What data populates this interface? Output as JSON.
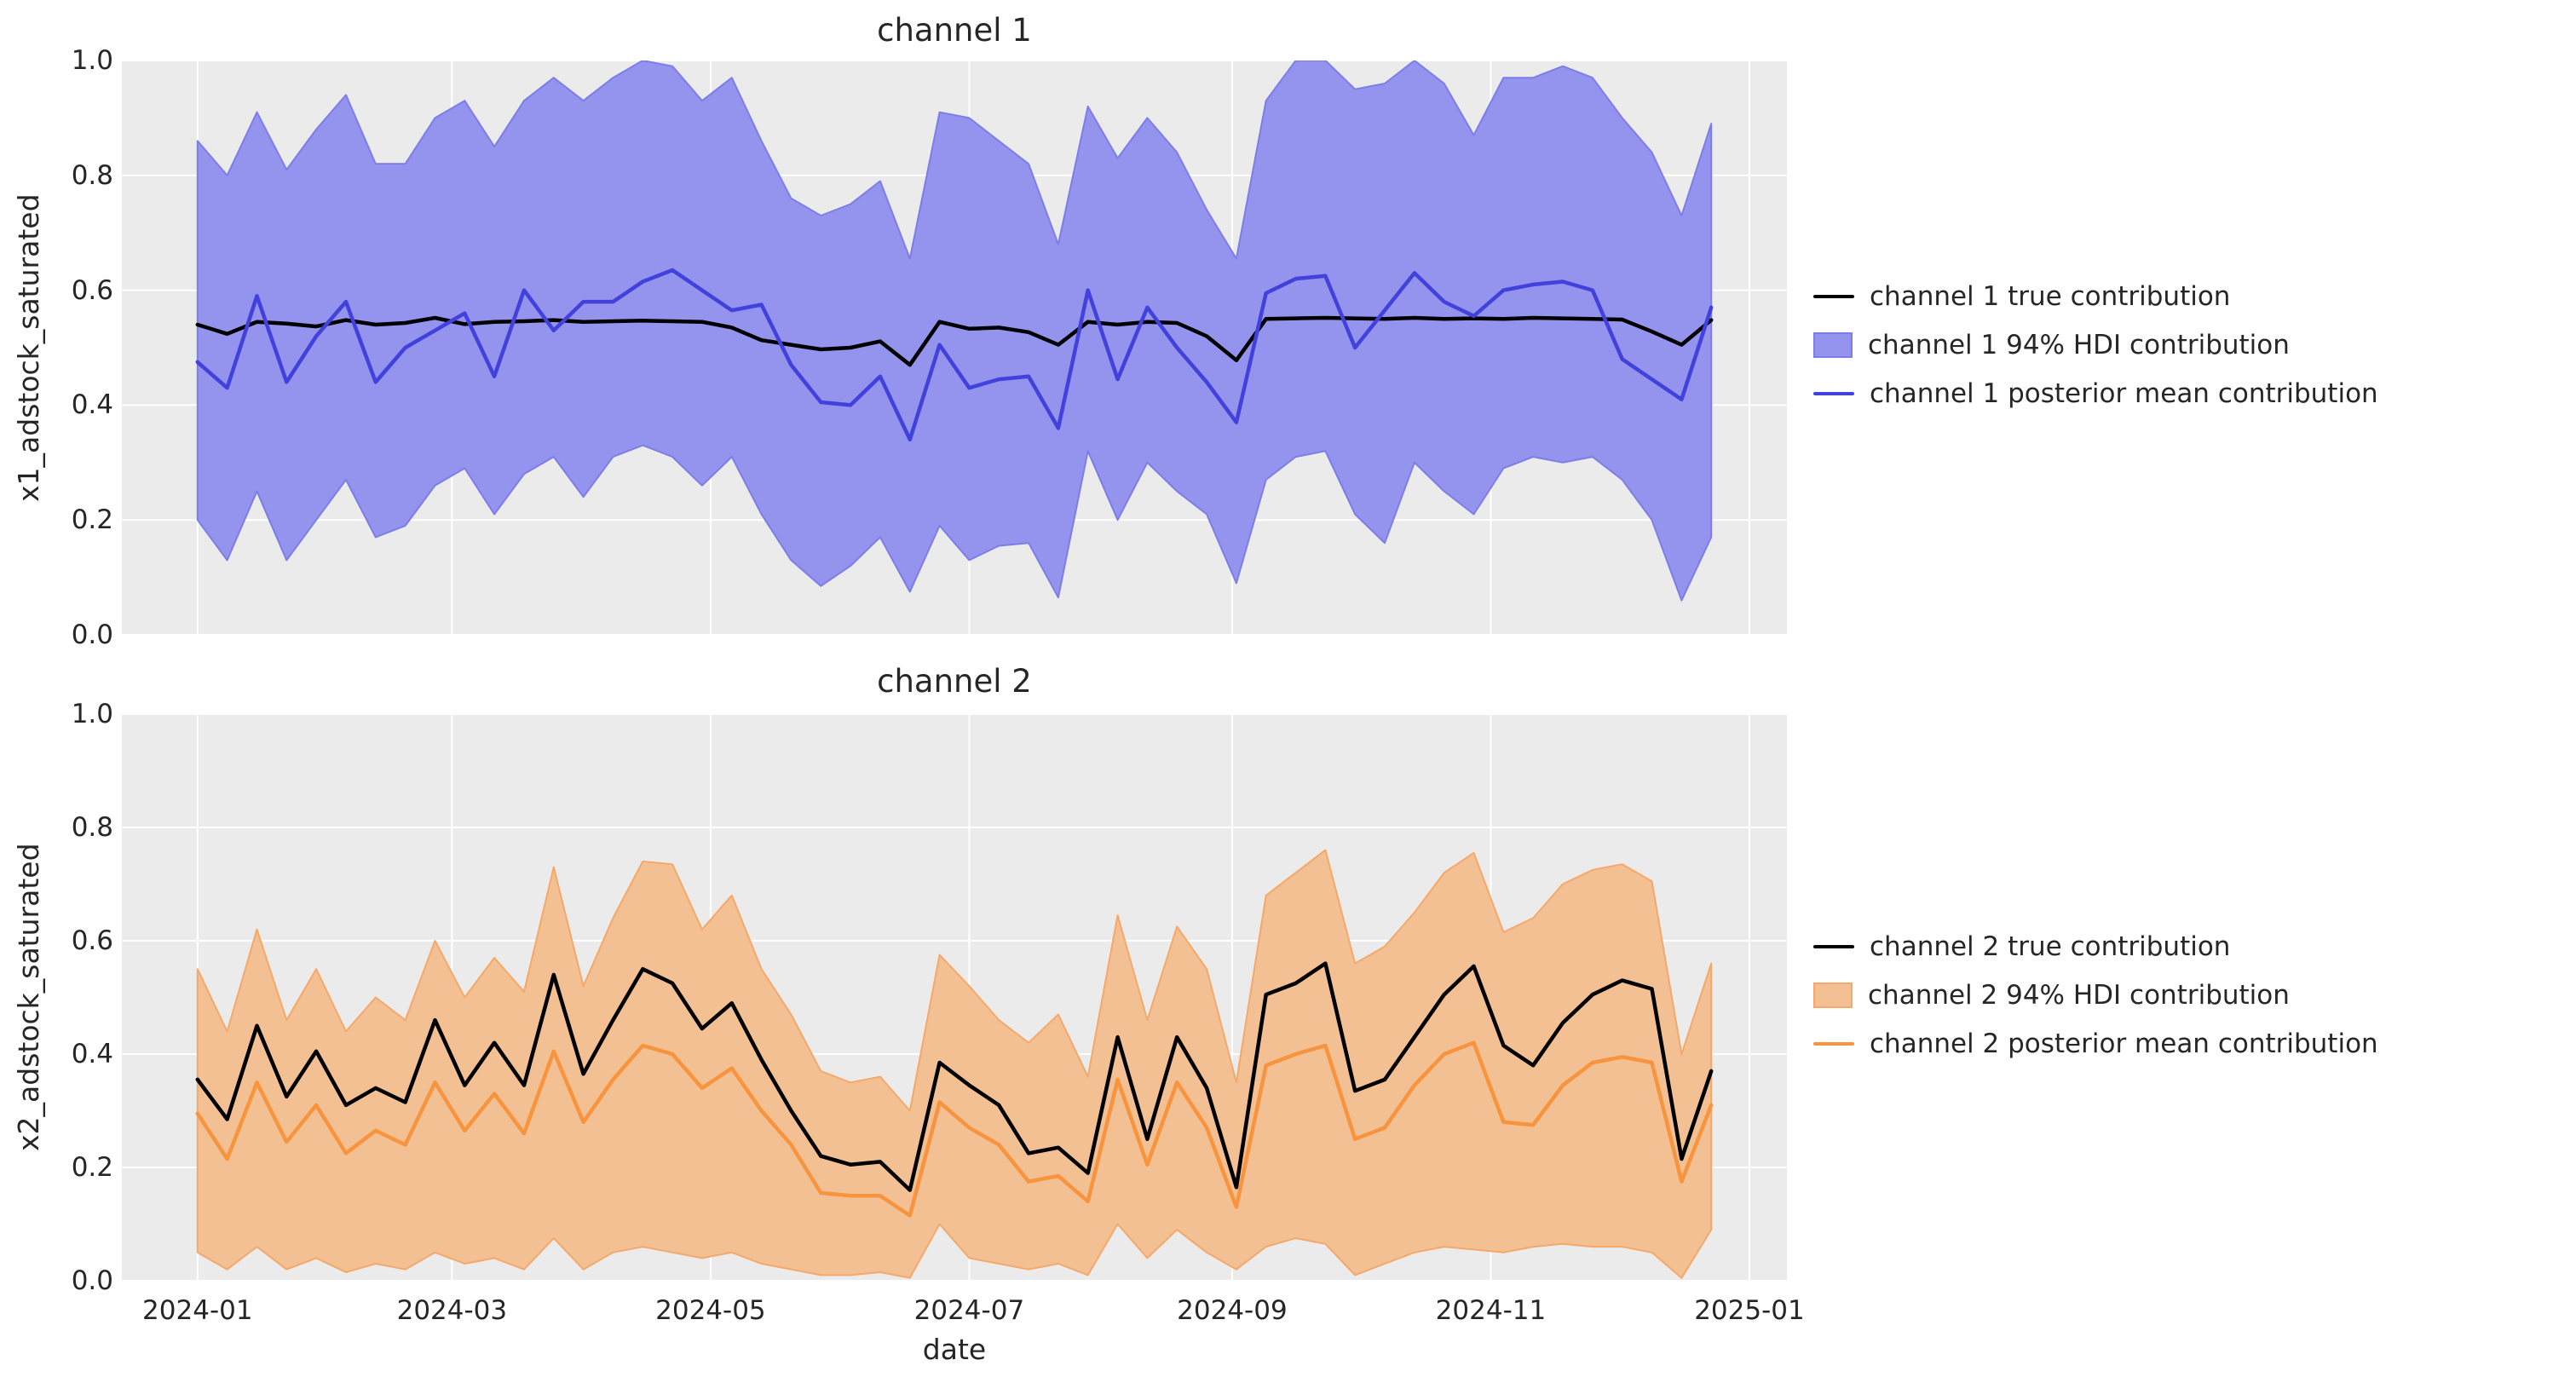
{
  "figure": {
    "background": "#ffffff",
    "axes_background": "#ebebeb",
    "grid_color": "#ffffff",
    "text_color": "#262626"
  },
  "chart_data": [
    {
      "type": "line",
      "title": "channel 1",
      "ylabel": "x1_adstock_saturated",
      "xlabel": "",
      "ylim": [
        0,
        1
      ],
      "grid": true,
      "legend_position": "right",
      "y_ticks": [
        "0.0",
        "0.2",
        "0.4",
        "0.6",
        "0.8",
        "1.0"
      ],
      "x_ticks": [
        {
          "label": "2024-01",
          "day": 0
        },
        {
          "label": "2024-03",
          "day": 60
        },
        {
          "label": "2024-05",
          "day": 121
        },
        {
          "label": "2024-07",
          "day": 182
        },
        {
          "label": "2024-09",
          "day": 244
        },
        {
          "label": "2024-11",
          "day": 305
        },
        {
          "label": "2025-01",
          "day": 366
        }
      ],
      "x_range_days": [
        -17.85,
        374.85
      ],
      "x_start_date": "2024-01-01",
      "x_step_days": 7,
      "show_x_tick_labels": false,
      "series": [
        {
          "name": "channel 1 true contribution",
          "type": "line",
          "color": "#000000",
          "values": [
            0.54,
            0.524,
            0.545,
            0.542,
            0.537,
            0.548,
            0.54,
            0.543,
            0.552,
            0.541,
            0.545,
            0.546,
            0.548,
            0.545,
            0.546,
            0.547,
            0.546,
            0.545,
            0.535,
            0.513,
            0.505,
            0.497,
            0.5,
            0.511,
            0.47,
            0.545,
            0.533,
            0.535,
            0.527,
            0.505,
            0.545,
            0.54,
            0.545,
            0.543,
            0.52,
            0.478,
            0.55,
            0.551,
            0.552,
            0.551,
            0.55,
            0.552,
            0.55,
            0.551,
            0.55,
            0.552,
            0.551,
            0.55,
            0.549,
            0.528,
            0.505,
            0.548
          ]
        },
        {
          "name": "channel 1 94% HDI contribution",
          "type": "band",
          "fill": "#9494ee",
          "edge": "#7d7de8",
          "upper": [
            0.86,
            0.8,
            0.91,
            0.81,
            0.88,
            0.94,
            0.82,
            0.82,
            0.9,
            0.93,
            0.85,
            0.93,
            0.97,
            0.93,
            0.97,
            1.0,
            0.99,
            0.93,
            0.97,
            0.86,
            0.76,
            0.73,
            0.75,
            0.79,
            0.655,
            0.91,
            0.9,
            0.86,
            0.82,
            0.68,
            0.92,
            0.83,
            0.9,
            0.84,
            0.74,
            0.655,
            0.93,
            1.0,
            1.0,
            0.95,
            0.96,
            1.0,
            0.96,
            0.87,
            0.97,
            0.97,
            0.99,
            0.97,
            0.9,
            0.84,
            0.73,
            0.89
          ],
          "lower": [
            0.2,
            0.13,
            0.25,
            0.13,
            0.2,
            0.27,
            0.17,
            0.19,
            0.26,
            0.29,
            0.21,
            0.28,
            0.31,
            0.24,
            0.31,
            0.33,
            0.31,
            0.26,
            0.31,
            0.21,
            0.13,
            0.085,
            0.12,
            0.17,
            0.075,
            0.19,
            0.13,
            0.155,
            0.16,
            0.065,
            0.32,
            0.2,
            0.3,
            0.25,
            0.21,
            0.09,
            0.27,
            0.31,
            0.32,
            0.21,
            0.16,
            0.3,
            0.25,
            0.21,
            0.29,
            0.31,
            0.3,
            0.31,
            0.27,
            0.2,
            0.06,
            0.17
          ]
        },
        {
          "name": "channel 1 posterior mean contribution",
          "type": "line",
          "color": "#4141dc",
          "values": [
            0.475,
            0.43,
            0.59,
            0.44,
            0.52,
            0.58,
            0.44,
            0.5,
            0.53,
            0.56,
            0.45,
            0.6,
            0.53,
            0.58,
            0.58,
            0.615,
            0.635,
            0.6,
            0.565,
            0.575,
            0.47,
            0.405,
            0.4,
            0.45,
            0.34,
            0.505,
            0.43,
            0.445,
            0.45,
            0.36,
            0.6,
            0.445,
            0.57,
            0.5,
            0.44,
            0.37,
            0.595,
            0.62,
            0.625,
            0.5,
            0.565,
            0.63,
            0.58,
            0.555,
            0.6,
            0.61,
            0.615,
            0.6,
            0.48,
            0.445,
            0.41,
            0.57
          ]
        }
      ]
    },
    {
      "type": "line",
      "title": "channel 2",
      "ylabel": "x2_adstock_saturated",
      "xlabel": "date",
      "ylim": [
        0,
        1
      ],
      "grid": true,
      "legend_position": "right",
      "y_ticks": [
        "0.0",
        "0.2",
        "0.4",
        "0.6",
        "0.8",
        "1.0"
      ],
      "x_ticks": [
        {
          "label": "2024-01",
          "day": 0
        },
        {
          "label": "2024-03",
          "day": 60
        },
        {
          "label": "2024-05",
          "day": 121
        },
        {
          "label": "2024-07",
          "day": 182
        },
        {
          "label": "2024-09",
          "day": 244
        },
        {
          "label": "2024-11",
          "day": 305
        },
        {
          "label": "2025-01",
          "day": 366
        }
      ],
      "x_range_days": [
        -17.85,
        374.85
      ],
      "x_start_date": "2024-01-01",
      "x_step_days": 7,
      "show_x_tick_labels": true,
      "series": [
        {
          "name": "channel 2 true contribution",
          "type": "line",
          "color": "#000000",
          "values": [
            0.355,
            0.285,
            0.45,
            0.325,
            0.405,
            0.31,
            0.34,
            0.315,
            0.46,
            0.345,
            0.42,
            0.345,
            0.54,
            0.365,
            0.46,
            0.55,
            0.525,
            0.445,
            0.49,
            0.39,
            0.3,
            0.22,
            0.205,
            0.21,
            0.16,
            0.385,
            0.345,
            0.31,
            0.225,
            0.235,
            0.19,
            0.43,
            0.25,
            0.43,
            0.34,
            0.165,
            0.505,
            0.525,
            0.56,
            0.335,
            0.355,
            0.43,
            0.505,
            0.555,
            0.415,
            0.38,
            0.455,
            0.505,
            0.53,
            0.515,
            0.215,
            0.37
          ]
        },
        {
          "name": "channel 2 94% HDI contribution",
          "type": "band",
          "fill": "#f3c093",
          "edge": "#f5a869",
          "upper": [
            0.55,
            0.44,
            0.62,
            0.46,
            0.55,
            0.44,
            0.5,
            0.46,
            0.6,
            0.5,
            0.57,
            0.51,
            0.73,
            0.52,
            0.64,
            0.74,
            0.735,
            0.62,
            0.68,
            0.55,
            0.47,
            0.37,
            0.35,
            0.36,
            0.3,
            0.575,
            0.52,
            0.46,
            0.42,
            0.47,
            0.36,
            0.645,
            0.46,
            0.625,
            0.55,
            0.35,
            0.68,
            0.72,
            0.76,
            0.56,
            0.59,
            0.65,
            0.72,
            0.755,
            0.615,
            0.64,
            0.7,
            0.725,
            0.735,
            0.705,
            0.4,
            0.56
          ],
          "lower": [
            0.05,
            0.02,
            0.06,
            0.02,
            0.04,
            0.015,
            0.03,
            0.02,
            0.05,
            0.03,
            0.04,
            0.02,
            0.075,
            0.02,
            0.05,
            0.06,
            0.05,
            0.04,
            0.05,
            0.03,
            0.02,
            0.01,
            0.01,
            0.015,
            0.005,
            0.1,
            0.04,
            0.03,
            0.02,
            0.03,
            0.01,
            0.1,
            0.04,
            0.09,
            0.05,
            0.02,
            0.06,
            0.075,
            0.065,
            0.01,
            0.03,
            0.05,
            0.06,
            0.055,
            0.05,
            0.06,
            0.065,
            0.06,
            0.06,
            0.05,
            0.005,
            0.09
          ]
        },
        {
          "name": "channel 2 posterior mean contribution",
          "type": "line",
          "color": "#f7943d",
          "values": [
            0.295,
            0.215,
            0.35,
            0.245,
            0.31,
            0.225,
            0.265,
            0.24,
            0.35,
            0.265,
            0.33,
            0.26,
            0.405,
            0.28,
            0.355,
            0.415,
            0.4,
            0.34,
            0.375,
            0.3,
            0.24,
            0.155,
            0.15,
            0.15,
            0.115,
            0.315,
            0.27,
            0.24,
            0.175,
            0.185,
            0.14,
            0.355,
            0.205,
            0.35,
            0.27,
            0.13,
            0.38,
            0.4,
            0.415,
            0.25,
            0.27,
            0.345,
            0.4,
            0.42,
            0.28,
            0.275,
            0.345,
            0.385,
            0.395,
            0.385,
            0.175,
            0.31
          ]
        }
      ]
    }
  ]
}
